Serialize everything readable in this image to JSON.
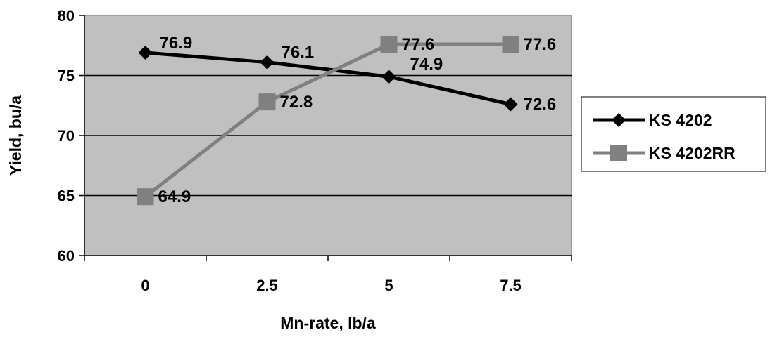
{
  "chart_data": {
    "type": "line",
    "title": "",
    "xlabel": "Mn-rate, lb/a",
    "ylabel": "Yield, bu/a",
    "categories": [
      "0",
      "2.5",
      "5",
      "7.5"
    ],
    "ylim": [
      60,
      80
    ],
    "yticks": [
      "60",
      "65",
      "70",
      "75",
      "80"
    ],
    "grid": true,
    "legend_position": "right",
    "plot_background": "#c0c0c0",
    "series": [
      {
        "name": "KS 4202",
        "values": [
          76.9,
          76.1,
          74.9,
          72.6
        ],
        "labels": [
          "76.9",
          "76.1",
          "74.9",
          "72.6"
        ],
        "color": "#000000",
        "marker": "diamond"
      },
      {
        "name": "KS 4202RR",
        "values": [
          64.9,
          72.8,
          77.6,
          77.6
        ],
        "labels": [
          "64.9",
          "72.8",
          "77.6",
          "77.6"
        ],
        "color": "#808080",
        "marker": "square"
      }
    ]
  }
}
